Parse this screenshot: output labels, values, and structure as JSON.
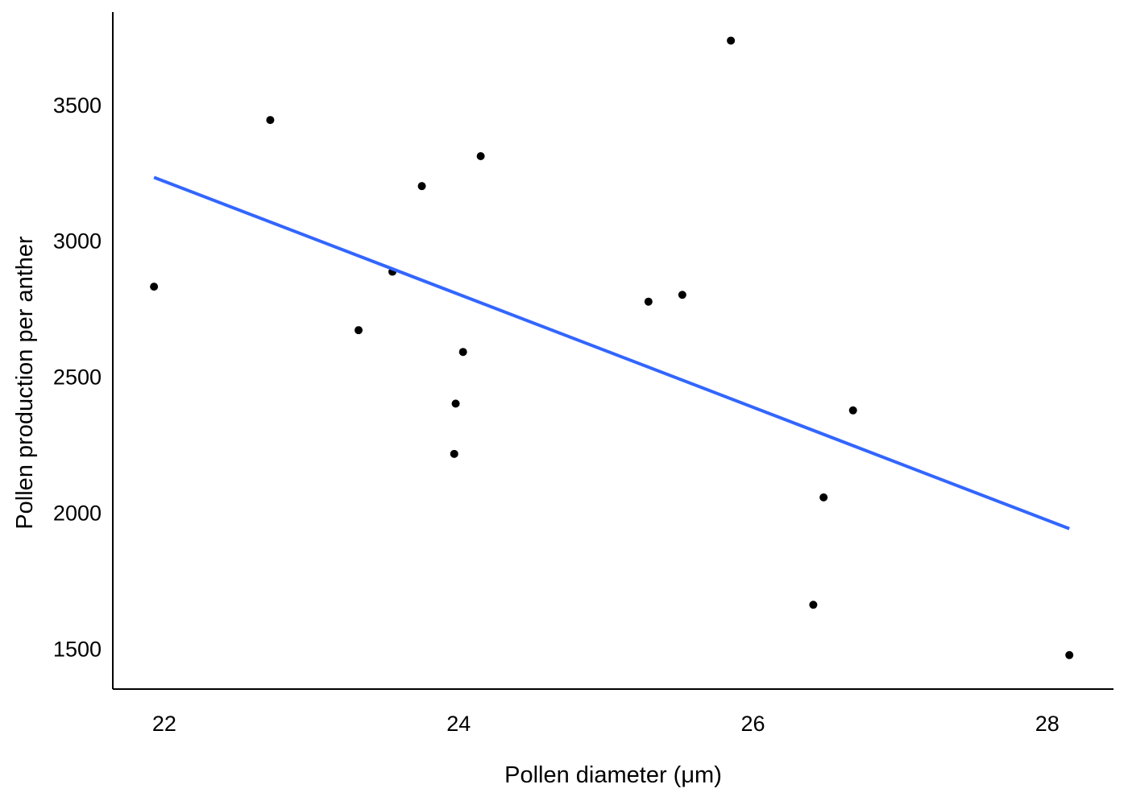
{
  "chart_data": {
    "type": "scatter",
    "title": "",
    "xlabel": "Pollen diameter (μm)",
    "ylabel": "Pollen production per anther",
    "xlim": [
      21.65,
      28.45
    ],
    "ylim": [
      1350,
      3840
    ],
    "x_ticks": [
      22,
      24,
      26,
      28
    ],
    "y_ticks": [
      1500,
      2000,
      2500,
      3000,
      3500
    ],
    "x_tick_labels": [
      "22",
      "24",
      "26",
      "28"
    ],
    "y_tick_labels": [
      "1500",
      "2000",
      "2500",
      "3000",
      "3500"
    ],
    "grid": false,
    "legend": "none",
    "point_color": "#000000",
    "points": [
      {
        "x": 21.93,
        "y": 2830
      },
      {
        "x": 22.72,
        "y": 3443
      },
      {
        "x": 23.32,
        "y": 2670
      },
      {
        "x": 23.55,
        "y": 2885
      },
      {
        "x": 23.75,
        "y": 3200
      },
      {
        "x": 23.97,
        "y": 2215
      },
      {
        "x": 23.98,
        "y": 2400
      },
      {
        "x": 24.03,
        "y": 2590
      },
      {
        "x": 24.15,
        "y": 3310
      },
      {
        "x": 25.29,
        "y": 2775
      },
      {
        "x": 25.52,
        "y": 2800
      },
      {
        "x": 25.85,
        "y": 3735
      },
      {
        "x": 26.41,
        "y": 1660
      },
      {
        "x": 26.48,
        "y": 2055
      },
      {
        "x": 26.68,
        "y": 2375
      },
      {
        "x": 28.15,
        "y": 1475
      }
    ],
    "trend_line": {
      "color": "#3366ff",
      "points": [
        {
          "x": 21.93,
          "y": 3232
        },
        {
          "x": 28.15,
          "y": 1940
        }
      ]
    }
  }
}
